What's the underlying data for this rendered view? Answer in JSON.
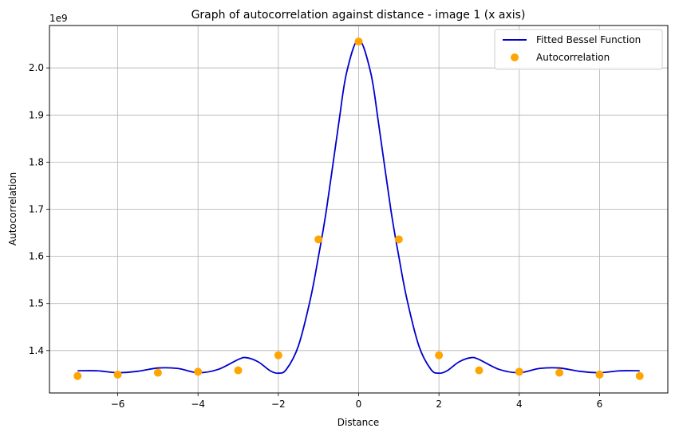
{
  "chart_data": {
    "type": "line",
    "title": "Graph of autocorrelation against distance  - image 1 (x axis)",
    "xlabel": "Distance",
    "ylabel": "Autocorrelation",
    "y_offset_label": "1e9",
    "xlim": [
      -7.7,
      7.7
    ],
    "ylim": [
      1.31,
      2.09
    ],
    "x_ticks": [
      -6,
      -4,
      -2,
      0,
      2,
      4,
      6
    ],
    "x_tick_labels": [
      "−6",
      "−4",
      "−2",
      "0",
      "2",
      "4",
      "6"
    ],
    "y_ticks": [
      1.4,
      1.5,
      1.6,
      1.7,
      1.8,
      1.9,
      2.0
    ],
    "y_tick_labels": [
      "1.4",
      "1.5",
      "1.6",
      "1.7",
      "1.8",
      "1.9",
      "2.0"
    ],
    "grid": true,
    "legend_position": "top-right",
    "series": [
      {
        "name": "Fitted Bessel Function",
        "kind": "line",
        "color": "#0000cc",
        "x": [
          -7.0,
          -6.5,
          -6.0,
          -5.5,
          -5.0,
          -4.5,
          -4.0,
          -3.5,
          -3.0,
          -2.8,
          -2.5,
          -2.2,
          -2.0,
          -1.8,
          -1.5,
          -1.2,
          -1.0,
          -0.8,
          -0.5,
          -0.3,
          0.0,
          0.3,
          0.5,
          0.8,
          1.0,
          1.2,
          1.5,
          1.8,
          2.0,
          2.2,
          2.5,
          2.8,
          3.0,
          3.5,
          4.0,
          4.5,
          5.0,
          5.5,
          6.0,
          6.5,
          7.0
        ],
        "y": [
          1.357,
          1.357,
          1.353,
          1.356,
          1.363,
          1.362,
          1.353,
          1.36,
          1.381,
          1.385,
          1.376,
          1.357,
          1.352,
          1.36,
          1.41,
          1.51,
          1.6,
          1.7,
          1.88,
          1.99,
          2.06,
          1.99,
          1.88,
          1.7,
          1.6,
          1.51,
          1.41,
          1.36,
          1.352,
          1.357,
          1.376,
          1.385,
          1.381,
          1.36,
          1.353,
          1.362,
          1.363,
          1.356,
          1.353,
          1.357,
          1.357
        ]
      },
      {
        "name": "Autocorrelation",
        "kind": "scatter",
        "color": "#ffa500",
        "x": [
          -7,
          -6,
          -5,
          -4,
          -3,
          -2,
          -1,
          0,
          1,
          2,
          3,
          4,
          5,
          6,
          7
        ],
        "y": [
          1.346,
          1.349,
          1.353,
          1.355,
          1.358,
          1.39,
          1.636,
          2.056,
          1.636,
          1.39,
          1.358,
          1.355,
          1.353,
          1.349,
          1.346
        ]
      }
    ]
  }
}
